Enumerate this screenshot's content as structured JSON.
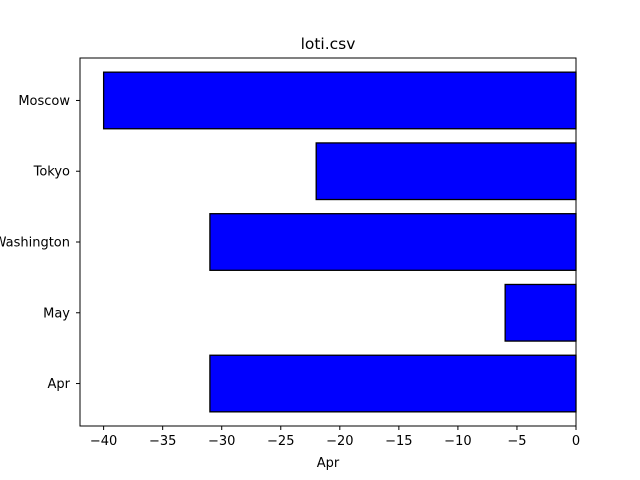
{
  "chart_data": {
    "type": "bar",
    "orientation": "horizontal",
    "title": "loti.csv",
    "xlabel": "Apr",
    "ylabel": "",
    "categories": [
      "Apr",
      "May",
      "Washington",
      "Tokyo",
      "Moscow"
    ],
    "values": [
      -31,
      -6,
      -31,
      -22,
      -40
    ],
    "xlim": [
      -42,
      0
    ],
    "xticks": [
      -40,
      -35,
      -30,
      -25,
      -20,
      -15,
      -10,
      -5,
      0
    ],
    "xtick_labels": [
      "−40",
      "−35",
      "−30",
      "−25",
      "−20",
      "−15",
      "−10",
      "−5",
      "0"
    ],
    "grid": false,
    "bar_color": "#0000ff",
    "edge_color": "#000000"
  }
}
